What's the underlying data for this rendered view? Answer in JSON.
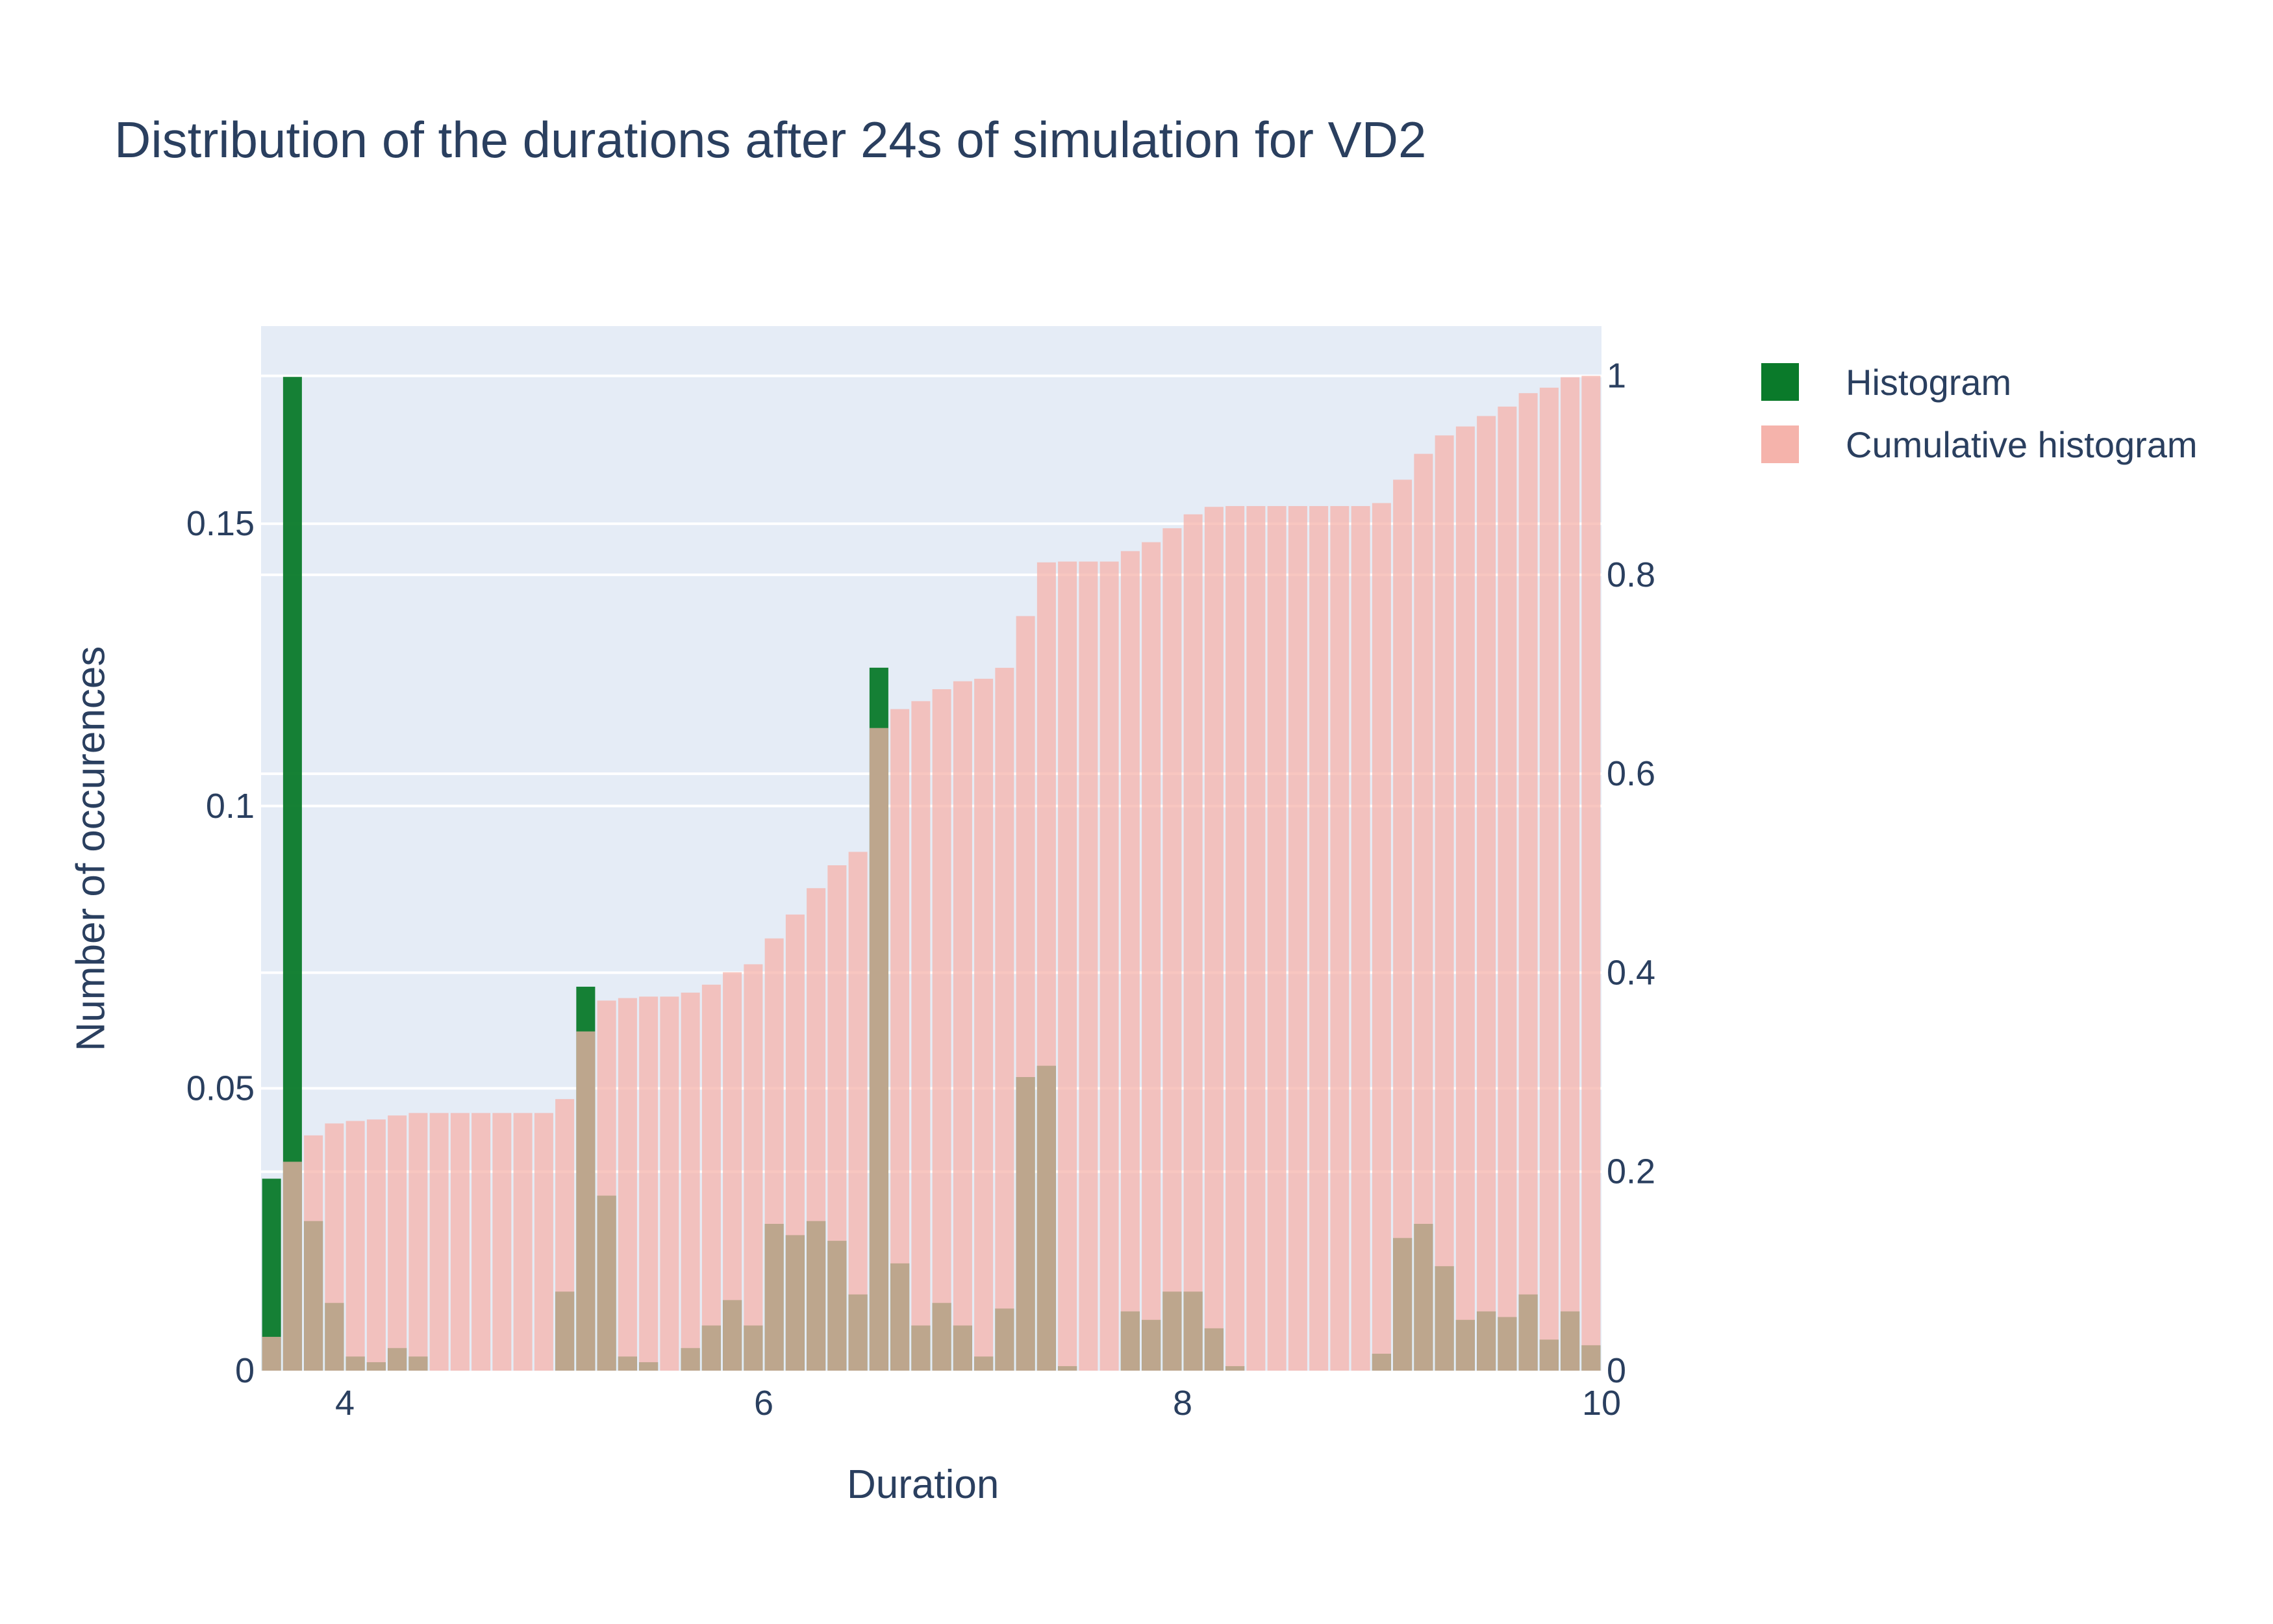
{
  "chart_data": {
    "type": "bar",
    "title": "Distribution of the durations after 24s of simulation for VD2",
    "xlabel": "Duration",
    "ylabel": "Number of occurences",
    "xlim": [
      3.6,
      10
    ],
    "ylim": [
      0,
      0.185
    ],
    "y2lim": [
      0,
      1.05
    ],
    "x_ticks": [
      "4",
      "6",
      "8",
      "10"
    ],
    "y_ticks": [
      "0",
      "0.05",
      "0.1",
      "0.15"
    ],
    "y2_ticks": [
      "0",
      "0.2",
      "0.4",
      "0.6",
      "0.8",
      "1"
    ],
    "bin_width": 0.1,
    "grid": true,
    "legend_position": "top-right",
    "colors": {
      "histogram": "#0a7a2a",
      "cumulative": "#f5b3ab",
      "plot_bg": "#e5ecf6",
      "text": "#2a3f5f"
    },
    "series": [
      {
        "name": "Histogram",
        "axis": "left",
        "x": [
          3.65,
          3.75,
          3.85,
          3.95,
          4.05,
          4.15,
          4.25,
          4.35,
          4.45,
          4.55,
          4.65,
          4.75,
          4.85,
          4.95,
          5.05,
          5.15,
          5.25,
          5.35,
          5.45,
          5.55,
          5.65,
          5.75,
          5.85,
          5.95,
          6.05,
          6.15,
          6.25,
          6.35,
          6.45,
          6.55,
          6.65,
          6.75,
          6.85,
          6.95,
          7.05,
          7.15,
          7.25,
          7.35,
          7.45,
          7.55,
          7.65,
          7.75,
          7.85,
          7.95,
          8.05,
          8.15,
          8.25,
          8.35,
          8.45,
          8.55,
          8.65,
          8.75,
          8.85,
          8.95,
          9.05,
          9.15,
          9.25,
          9.35,
          9.45,
          9.55,
          9.65,
          9.75,
          9.85,
          9.95
        ],
        "values": [
          0.034,
          0.176,
          0.0265,
          0.012,
          0.0025,
          0.0015,
          0.004,
          0.0025,
          0,
          0,
          0,
          0,
          0,
          0,
          0.014,
          0.068,
          0.031,
          0.0025,
          0.0015,
          0,
          0.004,
          0.008,
          0.0125,
          0.008,
          0.026,
          0.024,
          0.0265,
          0.023,
          0.0135,
          0.1245,
          0.019,
          0.008,
          0.012,
          0.008,
          0.0025,
          0.011,
          0.052,
          0.054,
          0.0008,
          0,
          0,
          0.0105,
          0.009,
          0.014,
          0.014,
          0.0075,
          0.0008,
          0,
          0,
          0,
          0,
          0,
          0,
          0.003,
          0.0235,
          0.026,
          0.0185,
          0.009,
          0.0105,
          0.0095,
          0.0135,
          0.0055,
          0.0105,
          0.0045
        ]
      },
      {
        "name": "Cumulative histogram",
        "axis": "right",
        "x": [
          3.65,
          3.75,
          3.85,
          3.95,
          4.05,
          4.15,
          4.25,
          4.35,
          4.45,
          4.55,
          4.65,
          4.75,
          4.85,
          4.95,
          5.05,
          5.15,
          5.25,
          5.35,
          5.45,
          5.55,
          5.65,
          5.75,
          5.85,
          5.95,
          6.05,
          6.15,
          6.25,
          6.35,
          6.45,
          6.55,
          6.65,
          6.75,
          6.85,
          6.95,
          7.05,
          7.15,
          7.25,
          7.35,
          7.45,
          7.55,
          7.65,
          7.75,
          7.85,
          7.95,
          8.05,
          8.15,
          8.25,
          8.35,
          8.45,
          8.55,
          8.65,
          8.75,
          8.85,
          8.95,
          9.05,
          9.15,
          9.25,
          9.35,
          9.45,
          9.55,
          9.65,
          9.75,
          9.85,
          9.95
        ],
        "values": [
          0.034,
          0.21,
          0.2365,
          0.2485,
          0.251,
          0.2525,
          0.2565,
          0.259,
          0.259,
          0.259,
          0.259,
          0.259,
          0.259,
          0.259,
          0.273,
          0.341,
          0.372,
          0.3745,
          0.376,
          0.376,
          0.38,
          0.388,
          0.4005,
          0.4085,
          0.4345,
          0.4585,
          0.485,
          0.508,
          0.5215,
          0.646,
          0.665,
          0.673,
          0.685,
          0.693,
          0.6955,
          0.7065,
          0.7585,
          0.8125,
          0.8133,
          0.8133,
          0.8133,
          0.8238,
          0.8328,
          0.8468,
          0.8608,
          0.8683,
          0.8691,
          0.8691,
          0.8691,
          0.8691,
          0.8691,
          0.8691,
          0.8691,
          0.8721,
          0.8956,
          0.9216,
          0.9401,
          0.9491,
          0.9596,
          0.9691,
          0.9826,
          0.9881,
          0.9986,
          1.0
        ]
      }
    ]
  }
}
